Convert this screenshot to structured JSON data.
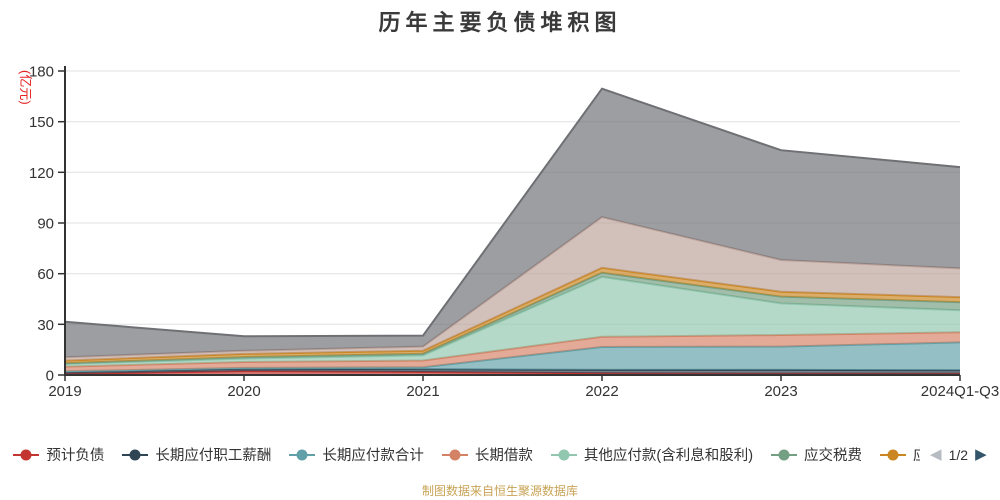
{
  "y_axis": {
    "unit": "(亿元)",
    "unit_color": "#e62222",
    "ticks": [
      0,
      30,
      60,
      90,
      120,
      150,
      180
    ]
  },
  "legend": {
    "page_indicator": "1/2",
    "prev_icon": "◀",
    "next_icon": "▶",
    "prev_color": "#b7bcc3",
    "next_color": "#33566b",
    "visible_items": 7
  },
  "footer": {
    "caption": "制图数据来自恒生聚源数据库",
    "color": "#c8a356"
  },
  "chart_data": {
    "type": "area",
    "stacked": true,
    "title": "历年主要负债堆积图",
    "ylabel": "(亿元)",
    "ylim": [
      0,
      180
    ],
    "grid": true,
    "legend_position": "bottom",
    "categories": [
      "2019",
      "2020",
      "2021",
      "2022",
      "2023",
      "2024Q1-Q3"
    ],
    "series": [
      {
        "name": "预计负债",
        "color": "#c23531",
        "values": [
          0.7,
          2.3,
          1.8,
          1.0,
          0.8,
          0.8
        ]
      },
      {
        "name": "长期应付职工薪酬",
        "color": "#2f4554",
        "values": [
          1.2,
          1.5,
          1.6,
          2.0,
          2.2,
          2.0
        ]
      },
      {
        "name": "长期应付款合计",
        "color": "#61a0a8",
        "values": [
          0.3,
          0.4,
          1.2,
          13.6,
          13.8,
          16.5
        ]
      },
      {
        "name": "长期借款",
        "color": "#d48265",
        "values": [
          2.8,
          3.5,
          4.0,
          6.0,
          6.9,
          6.0
        ]
      },
      {
        "name": "其他应付款(含利息和股利)",
        "color": "#91c7ae",
        "values": [
          1.5,
          2.0,
          3.0,
          35.5,
          18.7,
          13.0
        ]
      },
      {
        "name": "应交税费",
        "color": "#749f83",
        "values": [
          0.5,
          0.9,
          1.0,
          2.4,
          4.0,
          4.8
        ]
      },
      {
        "name": "应",
        "name_truncated": true,
        "color": "#ca8622",
        "values": [
          1.5,
          1.9,
          1.8,
          3.0,
          2.9,
          3.0
        ]
      },
      {
        "name": "",
        "legend_page": 2,
        "color": "#bda29a",
        "values": [
          2.0,
          1.8,
          2.4,
          30.0,
          18.8,
          17.0
        ]
      },
      {
        "name": "",
        "legend_page": 2,
        "color": "#6e7074",
        "values": [
          21.0,
          8.6,
          6.5,
          76.0,
          65.0,
          60.0
        ]
      }
    ]
  }
}
